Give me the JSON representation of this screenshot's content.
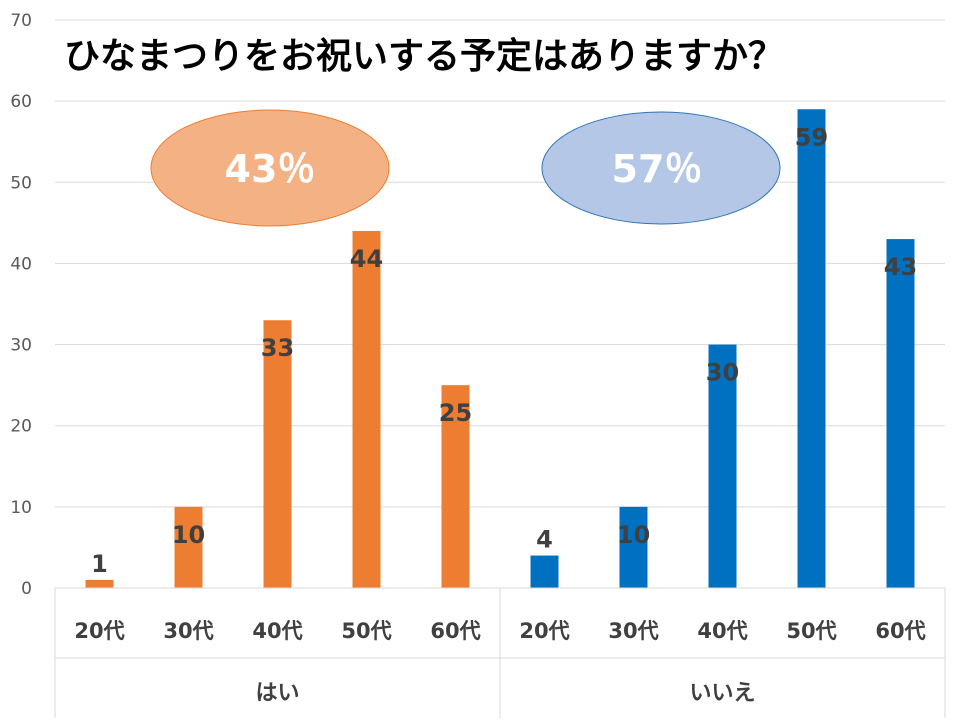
{
  "chart_data": {
    "type": "bar",
    "title": "ひなまつりをお祝いする予定はありますか？",
    "ylim": [
      0,
      70
    ],
    "yticks": [
      0,
      10,
      20,
      30,
      40,
      50,
      60,
      70
    ],
    "grid": true,
    "groups": [
      {
        "name": "はい",
        "percent_label": "43％",
        "color": "#ED7D31",
        "bubble_color": "#F4B183",
        "categories": [
          "20代",
          "30代",
          "40代",
          "50代",
          "60代"
        ],
        "values": [
          1,
          10,
          33,
          44,
          25
        ]
      },
      {
        "name": "いいえ",
        "percent_label": "57％",
        "color": "#0070C0",
        "bubble_color": "#B4C7E7",
        "categories": [
          "20代",
          "30代",
          "40代",
          "50代",
          "60代"
        ],
        "values": [
          4,
          10,
          30,
          59,
          43
        ]
      }
    ]
  }
}
